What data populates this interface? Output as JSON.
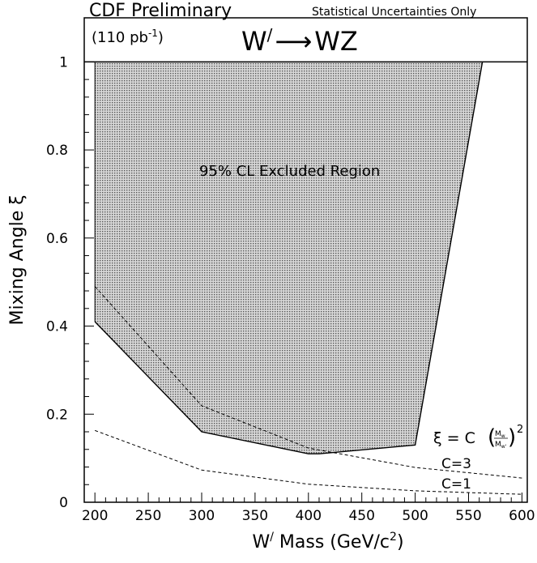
{
  "header": {
    "experiment": "CDF Preliminary",
    "note": "Statistical Uncertainties Only",
    "luminosity_main": "(110 pb",
    "luminosity_sup": "-1",
    "luminosity_close": ")",
    "process_left": "W",
    "process_prime": "/",
    "process_arrow": "⟶",
    "process_right": "WZ"
  },
  "chart_data": {
    "type": "area",
    "xlabel": {
      "w": "W",
      "prime": "/",
      "rest": " Mass (GeV/c",
      "sup": "2",
      "close": ")"
    },
    "ylabel": "Mixing Angle ξ",
    "xlim": [
      190,
      605
    ],
    "ylim": [
      0,
      1.1
    ],
    "x_ticks": [
      200,
      250,
      300,
      350,
      400,
      450,
      500,
      550,
      600
    ],
    "y_ticks": [
      0,
      0.2,
      0.4,
      0.6,
      0.8,
      1
    ],
    "y_tick_labels": [
      "0",
      "0.2",
      "0.4",
      "0.6",
      "0.8",
      "1"
    ],
    "excluded_region": {
      "label": "95% CL Excluded Region",
      "boundary": [
        {
          "x": 200,
          "y": 0.41
        },
        {
          "x": 300,
          "y": 0.16
        },
        {
          "x": 400,
          "y": 0.11
        },
        {
          "x": 410,
          "y": 0.11
        },
        {
          "x": 500,
          "y": 0.13
        },
        {
          "x": 563,
          "y": 1.0
        }
      ],
      "fill_color": "#c4c4c4"
    },
    "series": [
      {
        "name": "C=3",
        "style": "dashed",
        "x": [
          200,
          300,
          400,
          500,
          600
        ],
        "y": [
          0.49,
          0.219,
          0.123,
          0.079,
          0.055
        ]
      },
      {
        "name": "C=1",
        "style": "dashed",
        "x": [
          200,
          300,
          400,
          500,
          600
        ],
        "y": [
          0.163,
          0.073,
          0.041,
          0.026,
          0.018
        ]
      }
    ],
    "reference_line": {
      "y": 1.0
    },
    "formula": {
      "lhs": "ξ = C",
      "num": "M",
      "num_sub": "w",
      "den": "M",
      "den_sub": "w'",
      "exp": "2"
    }
  }
}
